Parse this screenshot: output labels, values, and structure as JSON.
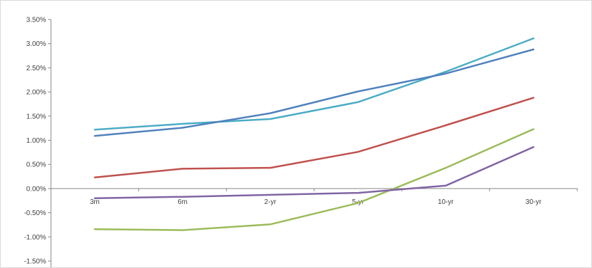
{
  "chart_data": {
    "type": "line",
    "title": "",
    "xlabel": "",
    "ylabel": "",
    "categories": [
      "3m",
      "6m",
      "2-yr",
      "5-yr",
      "10-yr",
      "30-yr"
    ],
    "y_ticks": [
      "3.50%",
      "3.00%",
      "2.50%",
      "2.00%",
      "1.50%",
      "1.00%",
      "0.50%",
      "0.00%",
      "-0.50%",
      "-1.00%",
      "-1.50%"
    ],
    "ylim": [
      -1.5,
      3.5
    ],
    "grid": false,
    "legend": "none",
    "series": [
      {
        "color": "#4bacc6",
        "values": [
          1.22,
          1.34,
          1.44,
          1.79,
          2.42,
          3.11
        ]
      },
      {
        "color": "#4f81bd",
        "values": [
          1.09,
          1.26,
          1.56,
          2.01,
          2.38,
          2.88
        ]
      },
      {
        "color": "#c0504d",
        "values": [
          0.23,
          0.41,
          0.43,
          0.76,
          1.31,
          1.88
        ]
      },
      {
        "color": "#9bbb59",
        "values": [
          -0.84,
          -0.86,
          -0.74,
          -0.3,
          0.43,
          1.23
        ]
      },
      {
        "color": "#8064a2",
        "values": [
          -0.2,
          -0.17,
          -0.13,
          -0.09,
          0.06,
          0.86
        ]
      }
    ]
  }
}
